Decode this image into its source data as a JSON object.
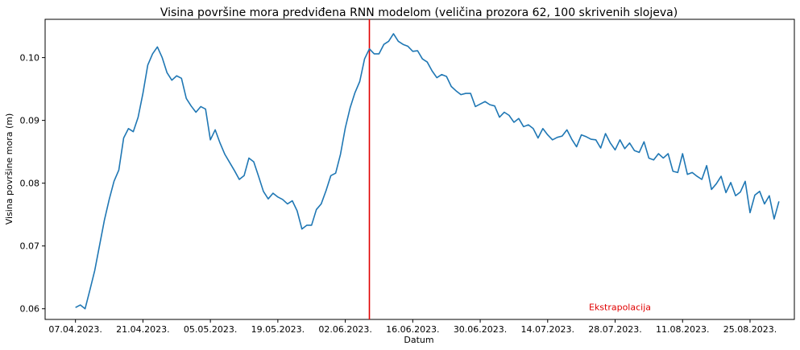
{
  "chart_data": {
    "type": "line",
    "title": "Visina površine mora predviđena RNN modelom (veličina prozora 62, 100 skrivenih slojeva)",
    "xlabel": "Datum",
    "ylabel": "Visina površine mora (m)",
    "x_ticks": [
      "07.04.2023.",
      "21.04.2023.",
      "05.05.2023.",
      "19.05.2023.",
      "02.06.2023.",
      "16.06.2023.",
      "30.06.2023.",
      "14.07.2023.",
      "28.07.2023.",
      "11.08.2023.",
      "25.08.2023."
    ],
    "y_ticks": [
      "0.06",
      "0.07",
      "0.08",
      "0.09",
      "0.10"
    ],
    "xlim": [
      -6.3,
      149.2
    ],
    "ylim": [
      0.0583,
      0.1061
    ],
    "grid": false,
    "series": [
      {
        "color": "#1f77b4",
        "values": [
          0.0602,
          0.0606,
          0.06,
          0.063,
          0.0661,
          0.0701,
          0.0741,
          0.0774,
          0.0803,
          0.0821,
          0.0872,
          0.0887,
          0.0882,
          0.0905,
          0.0943,
          0.0988,
          0.1006,
          0.1017,
          0.1,
          0.0976,
          0.0964,
          0.0971,
          0.0967,
          0.0935,
          0.0923,
          0.0913,
          0.0922,
          0.0918,
          0.0869,
          0.0885,
          0.0864,
          0.0846,
          0.0833,
          0.082,
          0.0806,
          0.0812,
          0.084,
          0.0834,
          0.0811,
          0.0787,
          0.0775,
          0.0784,
          0.0778,
          0.0774,
          0.0767,
          0.0772,
          0.0756,
          0.0727,
          0.0733,
          0.0733,
          0.0758,
          0.0767,
          0.0788,
          0.0812,
          0.0816,
          0.0846,
          0.0888,
          0.092,
          0.0944,
          0.0962,
          0.0998,
          0.1014,
          0.1006,
          0.1006,
          0.1021,
          0.1026,
          0.1038,
          0.1026,
          0.1021,
          0.1018,
          0.101,
          0.1011,
          0.0998,
          0.0993,
          0.0979,
          0.0968,
          0.0973,
          0.097,
          0.0954,
          0.0947,
          0.0941,
          0.0943,
          0.0943,
          0.0922,
          0.0926,
          0.093,
          0.0925,
          0.0923,
          0.0905,
          0.0913,
          0.0908,
          0.0897,
          0.0903,
          0.089,
          0.0893,
          0.0887,
          0.0872,
          0.0887,
          0.0877,
          0.0869,
          0.0873,
          0.0875,
          0.0885,
          0.087,
          0.0858,
          0.0877,
          0.0874,
          0.087,
          0.0869,
          0.0856,
          0.0879,
          0.0864,
          0.0853,
          0.0869,
          0.0855,
          0.0864,
          0.0852,
          0.0849,
          0.0866,
          0.084,
          0.0837,
          0.0847,
          0.084,
          0.0847,
          0.0819,
          0.0817,
          0.0847,
          0.0814,
          0.0817,
          0.0811,
          0.0806,
          0.0828,
          0.079,
          0.0799,
          0.0811,
          0.0785,
          0.0801,
          0.078,
          0.0786,
          0.0803,
          0.0753,
          0.0781,
          0.0787,
          0.0767,
          0.078,
          0.0743,
          0.0771
        ]
      }
    ],
    "vline": {
      "x": 61,
      "color": "#e00000"
    },
    "annotation": {
      "text": "Ekstrapolacija",
      "x": 113,
      "y": 0.0598,
      "color": "#e00000"
    }
  }
}
